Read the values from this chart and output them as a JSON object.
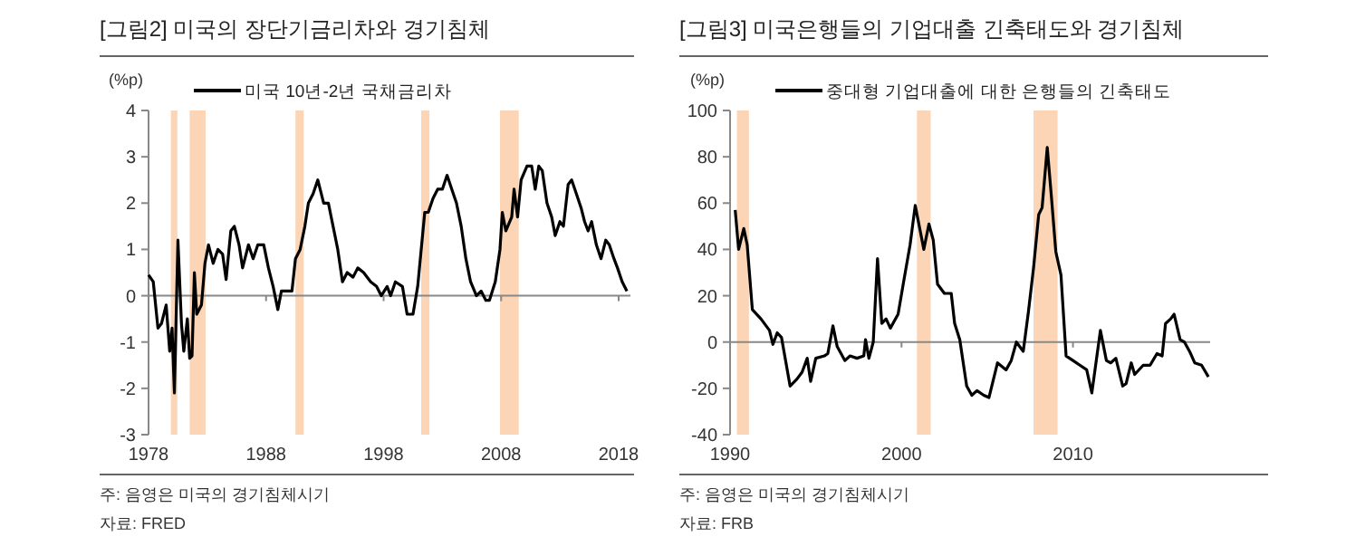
{
  "chart_data": [
    {
      "type": "line",
      "title": "[그림2]   미국의 장단기금리차와 경기침체",
      "ylabel": "(%p)",
      "legend": "top left",
      "xlim": [
        1978,
        2019
      ],
      "xticks": [
        1978,
        1988,
        1998,
        2008,
        2018
      ],
      "ylim": [
        -3,
        4
      ],
      "yticks": [
        -3,
        -2,
        -1,
        0,
        1,
        2,
        3,
        4
      ],
      "bands": [
        {
          "axis": "x",
          "from": 1979.9,
          "to": 1980.45,
          "color": "#fbd5b5"
        },
        {
          "axis": "x",
          "from": 1981.5,
          "to": 1982.85,
          "color": "#fbd5b5"
        },
        {
          "axis": "x",
          "from": 1990.5,
          "to": 1991.2,
          "color": "#fbd5b5"
        },
        {
          "axis": "x",
          "from": 2001.2,
          "to": 2001.9,
          "color": "#fbd5b5"
        },
        {
          "axis": "x",
          "from": 2007.9,
          "to": 2009.5,
          "color": "#fbd5b5"
        }
      ],
      "series": [
        {
          "name": "미국 10년-2년 국채금리차",
          "color": "#000000",
          "x": [
            1978.0,
            1978.4,
            1978.8,
            1979.1,
            1979.5,
            1979.8,
            1980.0,
            1980.2,
            1980.5,
            1980.8,
            1981.0,
            1981.3,
            1981.5,
            1981.7,
            1981.9,
            1982.1,
            1982.5,
            1982.8,
            1983.1,
            1983.5,
            1983.9,
            1984.3,
            1984.6,
            1985.0,
            1985.3,
            1985.7,
            1986.0,
            1986.5,
            1986.9,
            1987.3,
            1987.8,
            1988.2,
            1988.6,
            1989.0,
            1989.3,
            1989.7,
            1990.2,
            1990.5,
            1990.9,
            1991.3,
            1991.6,
            1992.0,
            1992.4,
            1992.9,
            1993.3,
            1993.7,
            1994.1,
            1994.5,
            1994.9,
            1995.4,
            1995.8,
            1996.3,
            1996.9,
            1997.4,
            1997.8,
            1998.3,
            1998.6,
            1999.0,
            1999.6,
            2000.0,
            2000.5,
            2000.9,
            2001.2,
            2001.5,
            2001.8,
            2002.2,
            2002.6,
            2003.0,
            2003.4,
            2003.8,
            2004.2,
            2004.6,
            2005.0,
            2005.4,
            2005.9,
            2006.3,
            2006.7,
            2007.0,
            2007.5,
            2007.9,
            2008.1,
            2008.4,
            2008.9,
            2009.1,
            2009.4,
            2009.7,
            2010.2,
            2010.6,
            2010.9,
            2011.2,
            2011.5,
            2011.9,
            2012.3,
            2012.6,
            2013.0,
            2013.3,
            2013.7,
            2014.0,
            2014.4,
            2014.8,
            2015.1,
            2015.4,
            2015.7,
            2016.1,
            2016.5,
            2016.9,
            2017.2,
            2017.6,
            2017.9,
            2018.3,
            2018.7
          ],
          "values": [
            0.45,
            0.3,
            -0.7,
            -0.6,
            -0.2,
            -1.2,
            -0.7,
            -2.1,
            1.2,
            -0.6,
            -1.2,
            -0.5,
            -1.35,
            -1.3,
            0.5,
            -0.4,
            -0.2,
            0.7,
            1.1,
            0.7,
            1.0,
            0.9,
            0.35,
            1.4,
            1.5,
            1.1,
            0.6,
            1.1,
            0.8,
            1.1,
            1.1,
            0.6,
            0.2,
            -0.3,
            0.1,
            0.1,
            0.1,
            0.8,
            1.0,
            1.5,
            2.0,
            2.2,
            2.5,
            2.0,
            2.0,
            1.5,
            1.0,
            0.3,
            0.5,
            0.4,
            0.6,
            0.5,
            0.3,
            0.2,
            0.0,
            0.2,
            0.0,
            0.3,
            0.2,
            -0.4,
            -0.4,
            0.2,
            1.0,
            1.8,
            1.8,
            2.1,
            2.3,
            2.3,
            2.6,
            2.3,
            2.0,
            1.5,
            0.8,
            0.3,
            0.0,
            0.1,
            -0.1,
            -0.1,
            0.3,
            1.0,
            1.8,
            1.4,
            1.7,
            2.3,
            1.7,
            2.5,
            2.8,
            2.8,
            2.3,
            2.8,
            2.7,
            2.0,
            1.7,
            1.3,
            1.6,
            1.5,
            2.4,
            2.5,
            2.2,
            1.9,
            1.6,
            1.4,
            1.6,
            1.1,
            0.8,
            1.2,
            1.1,
            0.8,
            0.6,
            0.3,
            0.1
          ]
        }
      ],
      "annotations": [
        "주: 음영은 미국의 경기침체시기",
        "자료: FRED"
      ]
    },
    {
      "type": "line",
      "title": "[그림3]   미국은행들의 기업대출 긴축태도와 경기침체",
      "ylabel": "(%p)",
      "legend": "top left",
      "xlim": [
        1990,
        2018
      ],
      "xticks": [
        1990,
        2000,
        2010
      ],
      "ylim": [
        -40,
        100
      ],
      "yticks": [
        -40,
        -20,
        0,
        20,
        40,
        60,
        80,
        100
      ],
      "bands": [
        {
          "axis": "x",
          "from": 1990.4,
          "to": 1991.1,
          "color": "#fbd5b5"
        },
        {
          "axis": "x",
          "from": 2000.9,
          "to": 2001.7,
          "color": "#fbd5b5"
        },
        {
          "axis": "x",
          "from": 2007.7,
          "to": 2009.1,
          "color": "#fbd5b5"
        }
      ],
      "series": [
        {
          "name": "중대형 기업대출에 대한 은행들의 긴축태도",
          "color": "#000000",
          "x": [
            1990.3,
            1990.5,
            1990.8,
            1991.0,
            1991.3,
            1991.8,
            1992.3,
            1992.5,
            1992.75,
            1993.0,
            1993.5,
            1993.9,
            1994.2,
            1994.5,
            1994.7,
            1995.0,
            1995.5,
            1995.7,
            1996.0,
            1996.25,
            1996.7,
            1997.0,
            1997.4,
            1997.8,
            1997.9,
            1998.1,
            1998.35,
            1998.6,
            1998.85,
            1999.1,
            1999.35,
            1999.8,
            2000.1,
            2000.5,
            2000.8,
            2001.3,
            2001.6,
            2001.85,
            2002.1,
            2002.5,
            2002.9,
            2003.1,
            2003.4,
            2003.8,
            2004.1,
            2004.4,
            2004.8,
            2005.1,
            2005.6,
            2006.1,
            2006.4,
            2006.7,
            2007.1,
            2007.4,
            2007.7,
            2008.0,
            2008.2,
            2008.5,
            2008.75,
            2009.0,
            2009.3,
            2009.6,
            2010.0,
            2010.4,
            2010.8,
            2011.1,
            2011.6,
            2011.95,
            2012.2,
            2012.5,
            2012.9,
            2013.1,
            2013.4,
            2013.6,
            2014.1,
            2014.5,
            2014.9,
            2015.2,
            2015.4,
            2015.7,
            2015.9,
            2016.25,
            2016.5,
            2016.8,
            2017.1,
            2017.5,
            2017.9
          ],
          "values": [
            57,
            40,
            49,
            42,
            14,
            10,
            5,
            -1,
            4,
            2,
            -19,
            -16,
            -13,
            -7,
            -17,
            -7,
            -6,
            -5,
            7,
            -2,
            -8,
            -6,
            -7,
            -6,
            1,
            -7,
            0,
            36,
            8,
            10,
            6,
            12,
            25,
            42,
            59,
            40,
            51,
            44,
            25,
            21,
            21,
            8,
            1,
            -19,
            -23,
            -21,
            -23,
            -24,
            -9,
            -12,
            -8,
            0,
            -4,
            13,
            32,
            55,
            58,
            84,
            62,
            39,
            29,
            -6,
            -8,
            -10,
            -12,
            -22,
            5,
            -8,
            -9,
            -7,
            -19,
            -18,
            -9,
            -14,
            -10,
            -10,
            -5,
            -6,
            8,
            10,
            12,
            1,
            0,
            -4,
            -9,
            -10,
            -15
          ]
        }
      ],
      "annotations": [
        "주: 음영은 미국의 경기침체시기",
        "자료: FRB"
      ]
    }
  ]
}
